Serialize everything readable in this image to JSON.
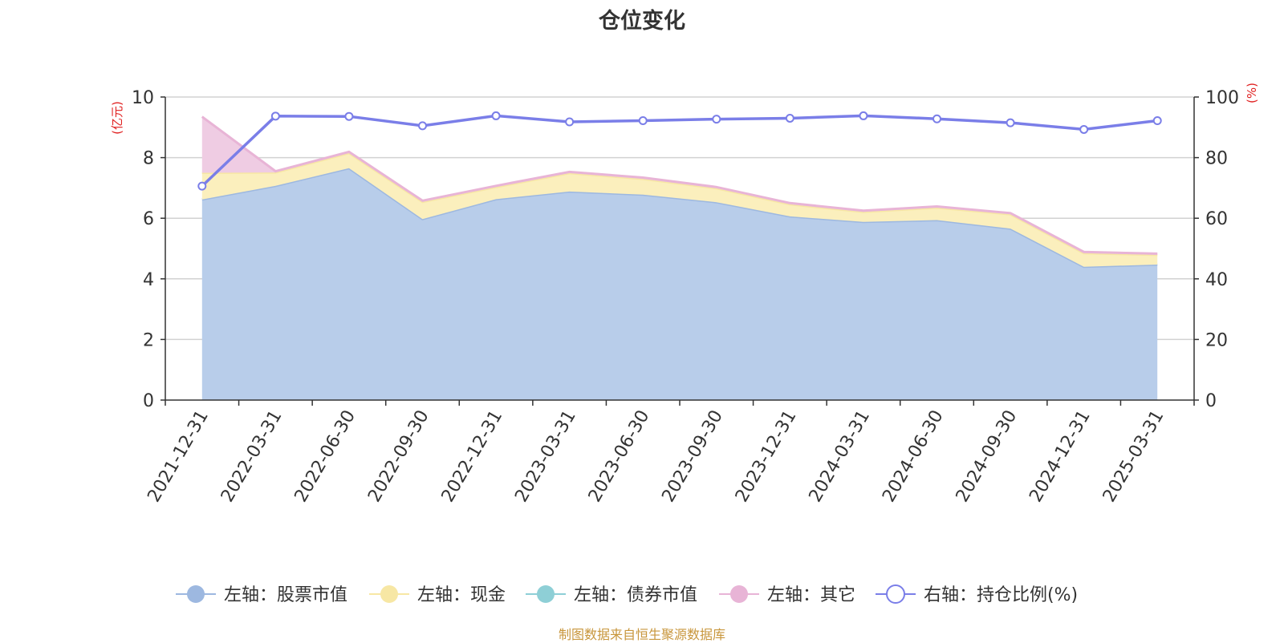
{
  "chart_data": {
    "type": "area",
    "title": "仓位变化",
    "left_axis_unit": "(亿元)",
    "right_axis_unit": "(%)",
    "ylim_left": [
      0,
      10
    ],
    "yticks_left": [
      "0",
      "2",
      "4",
      "6",
      "8",
      "10"
    ],
    "ylim_right": [
      0,
      100
    ],
    "yticks_right": [
      "0",
      "20",
      "40",
      "60",
      "80",
      "100"
    ],
    "grid": true,
    "legend_position": "bottom",
    "categories": [
      "2021-12-31",
      "2022-03-31",
      "2022-06-30",
      "2022-09-30",
      "2022-12-31",
      "2023-03-31",
      "2023-06-30",
      "2023-09-30",
      "2023-12-31",
      "2024-03-31",
      "2024-06-30",
      "2024-09-30",
      "2024-12-31",
      "2025-03-31"
    ],
    "series": [
      {
        "name": "左轴：股票市值",
        "axis": "left",
        "kind": "stacked-area",
        "color": "#9db8e0",
        "fill": "#b8cdea",
        "values": [
          6.62,
          7.07,
          7.65,
          5.97,
          6.63,
          6.88,
          6.78,
          6.53,
          6.06,
          5.88,
          5.94,
          5.66,
          4.4,
          4.47
        ]
      },
      {
        "name": "左轴：现金",
        "axis": "left",
        "kind": "stacked-area",
        "color": "#f7e7a4",
        "fill": "#fbefbd",
        "values": [
          0.88,
          0.44,
          0.5,
          0.57,
          0.4,
          0.61,
          0.52,
          0.46,
          0.4,
          0.33,
          0.41,
          0.47,
          0.45,
          0.32
        ]
      },
      {
        "name": "左轴：债券市值",
        "axis": "left",
        "kind": "stacked-area",
        "color": "#8ecfd6",
        "fill": "#b6e1e5",
        "values": [
          0,
          0,
          0,
          0,
          0,
          0,
          0,
          0,
          0,
          0,
          0,
          0,
          0,
          0
        ]
      },
      {
        "name": "左轴：其它",
        "axis": "left",
        "kind": "stacked-area",
        "color": "#e8b4d6",
        "fill": "#efcce3",
        "values": [
          1.85,
          0.04,
          0.04,
          0.04,
          0.04,
          0.04,
          0.04,
          0.04,
          0.04,
          0.04,
          0.04,
          0.04,
          0.04,
          0.04
        ]
      },
      {
        "name": "右轴：持仓比例(%)",
        "axis": "right",
        "kind": "line",
        "color": "#7a7ee8",
        "values": [
          70.6,
          93.7,
          93.6,
          90.5,
          93.8,
          91.8,
          92.2,
          92.7,
          93.0,
          93.8,
          92.8,
          91.5,
          89.3,
          92.2
        ]
      }
    ],
    "source_note": "制图数据来自恒生聚源数据库"
  }
}
